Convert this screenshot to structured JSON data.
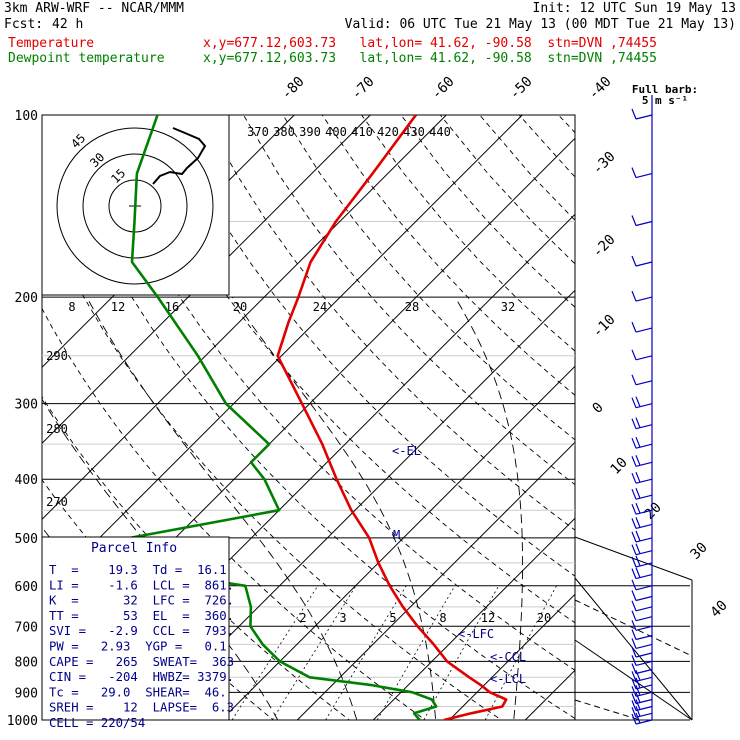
{
  "header": {
    "model": "3km ARW-WRF -- NCAR/MMM",
    "init": "Init: 12 UTC Sun 19 May 13",
    "fcst_label": "Fcst:",
    "fcst_value": "42 h",
    "valid": "Valid: 06 UTC Tue 21 May 13 (00 MDT Tue 21 May 13)",
    "temp_label": "Temperature",
    "temp_loc": "x,y=677.12,603.73   lat,lon= 41.62, -90.58  stn=DVN ,74455",
    "dew_label": "Dewpoint temperature",
    "dew_loc": "x,y=677.12,603.73   lat,lon= 41.62, -90.58  stn=DVN ,74455"
  },
  "barb_legend": {
    "line1": "Full barb:",
    "line2": "5 m s⁻¹"
  },
  "parcel_info": {
    "title": "Parcel Info",
    "rows": [
      "T  =    19.3  Td =  16.1",
      "LI =    -1.6  LCL =  861.",
      "K  =      32  LFC =  726.",
      "TT =      53  EL  =  360.",
      "SVI =   -2.9  CCL =  793.",
      "PW =   2.93  YGP =   0.1",
      "CAPE =   265  SWEAT=  363",
      "CIN =   -204  HWBZ= 3379.",
      "Tc =   29.0  SHEAR=  46.",
      "SREH =    12  LAPSE=  6.3",
      "CELL = 220/54"
    ]
  },
  "hodo": {
    "rings": [
      "15",
      "30",
      "45"
    ],
    "kts": "kts"
  },
  "levels": {
    "el": "<-EL",
    "lfc": "<-LFC",
    "ccl": "<-CCL",
    "lcl": "<-LCL",
    "marker": "M"
  },
  "chart_data": {
    "type": "line",
    "title": "Skew-T log-P sounding",
    "pressure_ticks": [
      "100",
      "200",
      "300",
      "400",
      "500",
      "600",
      "700",
      "800",
      "900",
      "1000"
    ],
    "pressure_values": [
      100,
      200,
      300,
      400,
      500,
      600,
      700,
      800,
      900,
      1000
    ],
    "isotherm_labels": [
      "-80",
      "-70",
      "-60",
      "-50",
      "-40",
      "-30",
      "-20",
      "-10",
      "0",
      "10",
      "20",
      "30",
      "40"
    ],
    "theta_labels_top": [
      "370",
      "380",
      "390",
      "400",
      "410",
      "420",
      "430",
      "440"
    ],
    "theta_labels_side": [
      "290",
      "280",
      "270"
    ],
    "mixing_ratio_labels": [
      "2",
      "3",
      "5",
      "8",
      "12",
      "20"
    ],
    "hodo_speed_labels": [
      "8",
      "12",
      "16",
      "20",
      "24",
      "28",
      "32"
    ],
    "series": [
      {
        "name": "Temperature",
        "color": "#e00000",
        "p": [
          1000,
          975,
          950,
          925,
          900,
          875,
          850,
          800,
          750,
          700,
          650,
          600,
          550,
          500,
          450,
          400,
          350,
          300,
          250,
          220,
          200,
          175,
          150,
          125,
          100
        ],
        "t": [
          19.3,
          22.0,
          25.2,
          24.8,
          21.7,
          19.5,
          17.0,
          12.0,
          8.0,
          3.5,
          -1.0,
          -5.5,
          -10.0,
          -14.5,
          -20.5,
          -26.5,
          -33.0,
          -41.0,
          -50.5,
          -53.5,
          -55.5,
          -58.5,
          -60.5,
          -62.0,
          -64.0
        ]
      },
      {
        "name": "Dewpoint temperature",
        "color": "#008000",
        "p": [
          1000,
          975,
          950,
          925,
          900,
          875,
          850,
          800,
          750,
          700,
          650,
          600,
          550,
          500,
          450,
          400,
          375,
          350,
          300,
          250,
          200,
          175,
          150,
          125,
          100
        ],
        "t": [
          16.1,
          14.5,
          16.5,
          15.0,
          11.5,
          5.0,
          -4.0,
          -10.0,
          -14.5,
          -18.5,
          -21.0,
          -24.5,
          -47.0,
          -46.0,
          -30.0,
          -36.0,
          -40.0,
          -40.0,
          -51.0,
          -61.0,
          -74.0,
          -82.0,
          -87.0,
          -93.0,
          -98.0
        ]
      }
    ]
  },
  "colors": {
    "temperature": "#e00000",
    "dewpoint": "#008000",
    "text": "#000000",
    "labels": "#00008b",
    "barbs": "#0000c0",
    "grid": "#000000"
  }
}
